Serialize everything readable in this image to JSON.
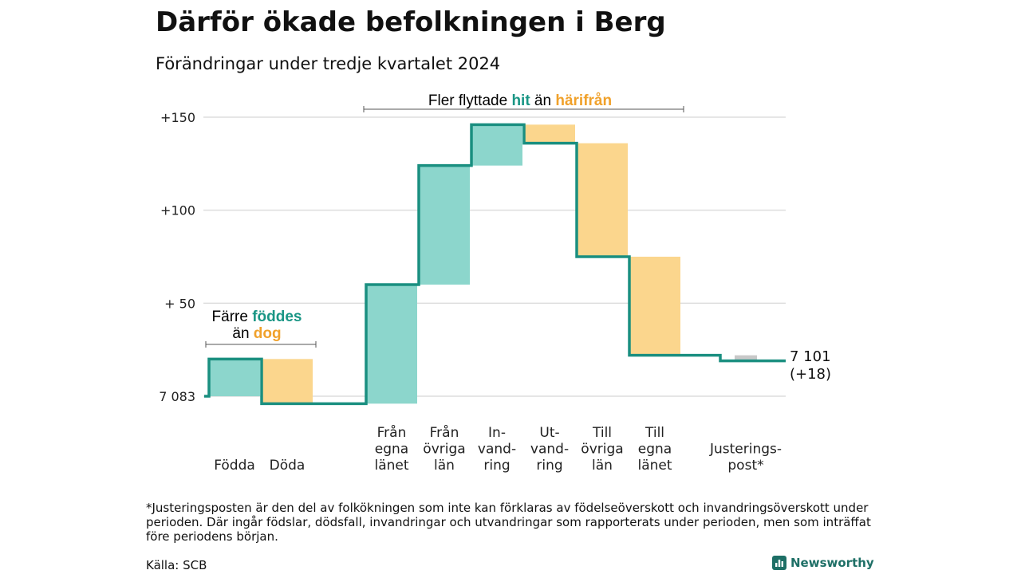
{
  "header": {
    "title": "Därför ökade befolkningen i Berg",
    "subtitle": "Förändringar under tredje kvartalet 2024"
  },
  "chart_data": {
    "type": "waterfall",
    "base_value": 7083,
    "base_label": "7 083",
    "yticks": [
      {
        "value": 0,
        "label": "7 083"
      },
      {
        "value": 50,
        "label": "+ 50"
      },
      {
        "value": 100,
        "label": "+100"
      },
      {
        "value": 150,
        "label": "+150"
      }
    ],
    "ylim": [
      0,
      150
    ],
    "grid": true,
    "colors": {
      "increase": "#8cd6cc",
      "decrease": "#fbd68d",
      "adjustment": "#c8c8c8",
      "line": "#1a8f80",
      "accent_increase": "#1a9685",
      "accent_decrease": "#f0a12b"
    },
    "steps": [
      {
        "label_lines": [
          "Födda"
        ],
        "change": 20,
        "group": "natural"
      },
      {
        "label_lines": [
          "Döda"
        ],
        "change": -24,
        "group": "natural"
      },
      {
        "label_lines": [
          "Från",
          "egna",
          "länet"
        ],
        "change": 64,
        "group": "migration"
      },
      {
        "label_lines": [
          "Från",
          "övriga",
          "län"
        ],
        "change": 64,
        "group": "migration"
      },
      {
        "label_lines": [
          "In-",
          "vand-",
          "ring"
        ],
        "change": 22,
        "group": "migration"
      },
      {
        "label_lines": [
          "Ut-",
          "vand-",
          "ring"
        ],
        "change": -10,
        "group": "migration"
      },
      {
        "label_lines": [
          "Till",
          "övriga",
          "län"
        ],
        "change": -61,
        "group": "migration"
      },
      {
        "label_lines": [
          "Till",
          "egna",
          "länet"
        ],
        "change": -53,
        "group": "migration"
      },
      {
        "label_lines": [
          "Justerings-",
          "post*"
        ],
        "change": -3,
        "group": "adjustment"
      }
    ],
    "end_label_lines": [
      "7 101",
      "(+18)"
    ],
    "annotations": {
      "natural": {
        "line1_parts": [
          "Färre ",
          "föddes"
        ],
        "line2_parts": [
          "än ",
          "dog"
        ]
      },
      "migration": {
        "parts": [
          "Fler flyttade ",
          "hit",
          " än ",
          "härifrån"
        ]
      }
    }
  },
  "footer": {
    "footnote": "*Justeringsposten är den del av folkökningen som inte kan förklaras av födelseöverskott och invandringsöverskott under perioden. Där ingår födslar, dödsfall, invandringar och utvandringar som rapporterats under perioden, men som inträffat före periodens början.",
    "source": "Källa: SCB",
    "brand": "Newsworthy",
    "brand_icon": "bar-chart-logo-icon"
  }
}
